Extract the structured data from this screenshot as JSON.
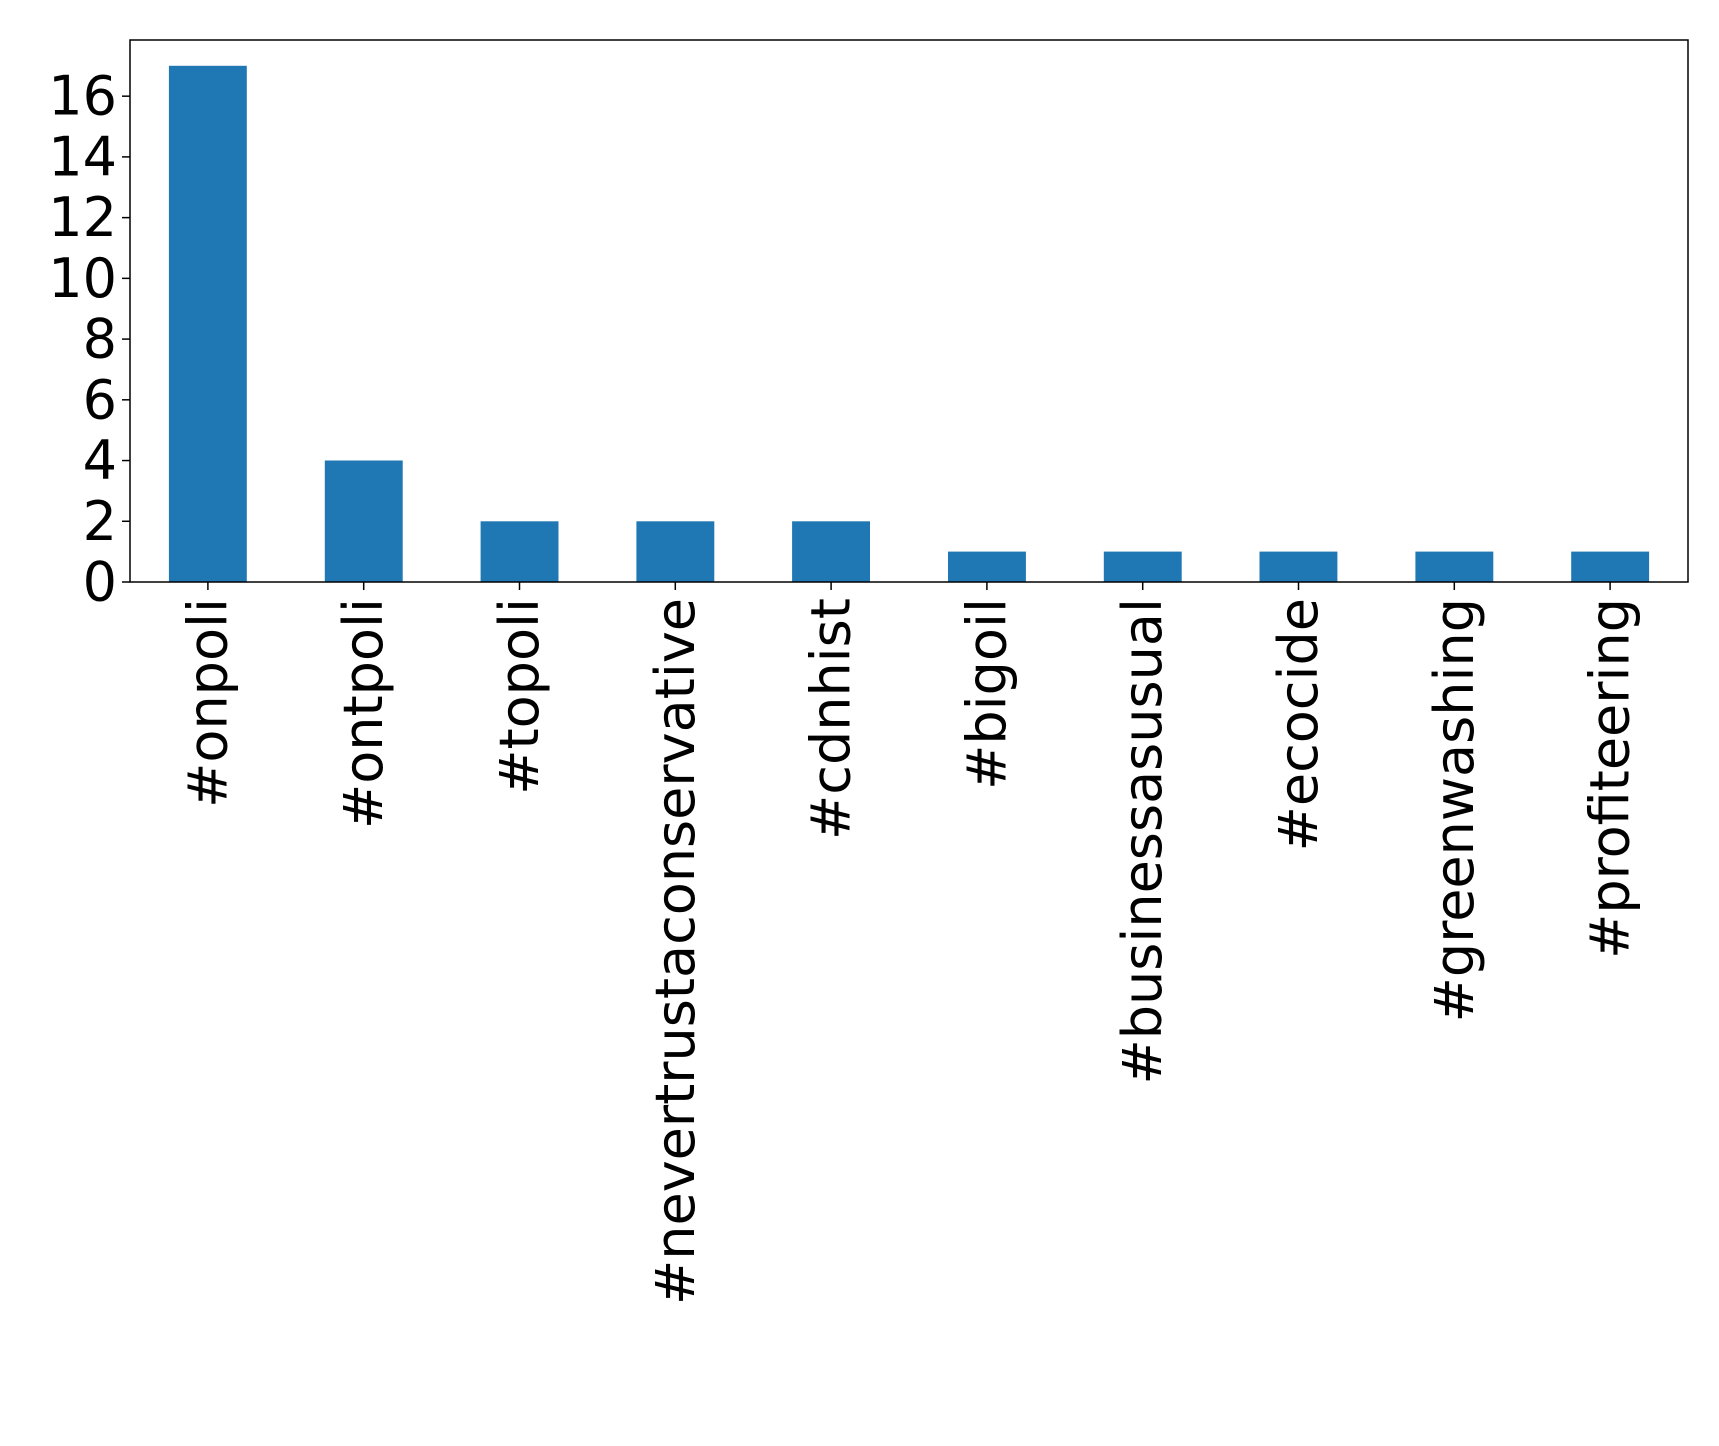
{
  "chart_data": {
    "type": "bar",
    "title": "",
    "xlabel": "",
    "ylabel": "",
    "categories": [
      "#onpoli",
      "#ontpoli",
      "#topoli",
      "#nevertrustaconservative",
      "#cdnhist",
      "#bigoil",
      "#businessasusual",
      "#ecocide",
      "#greenwashing",
      "#profiteering"
    ],
    "values": [
      17,
      4,
      2,
      2,
      2,
      1,
      1,
      1,
      1,
      1
    ],
    "ylim": [
      0,
      17.85
    ],
    "yticks": [
      0,
      2,
      4,
      6,
      8,
      10,
      12,
      14,
      16
    ],
    "ytick_labels": [
      "0",
      "2",
      "4",
      "6",
      "8",
      "10",
      "12",
      "14",
      "16"
    ],
    "grid": false,
    "legend": "none",
    "bar_color": "#1f77b4",
    "x_tick_rotation": "vertical"
  }
}
